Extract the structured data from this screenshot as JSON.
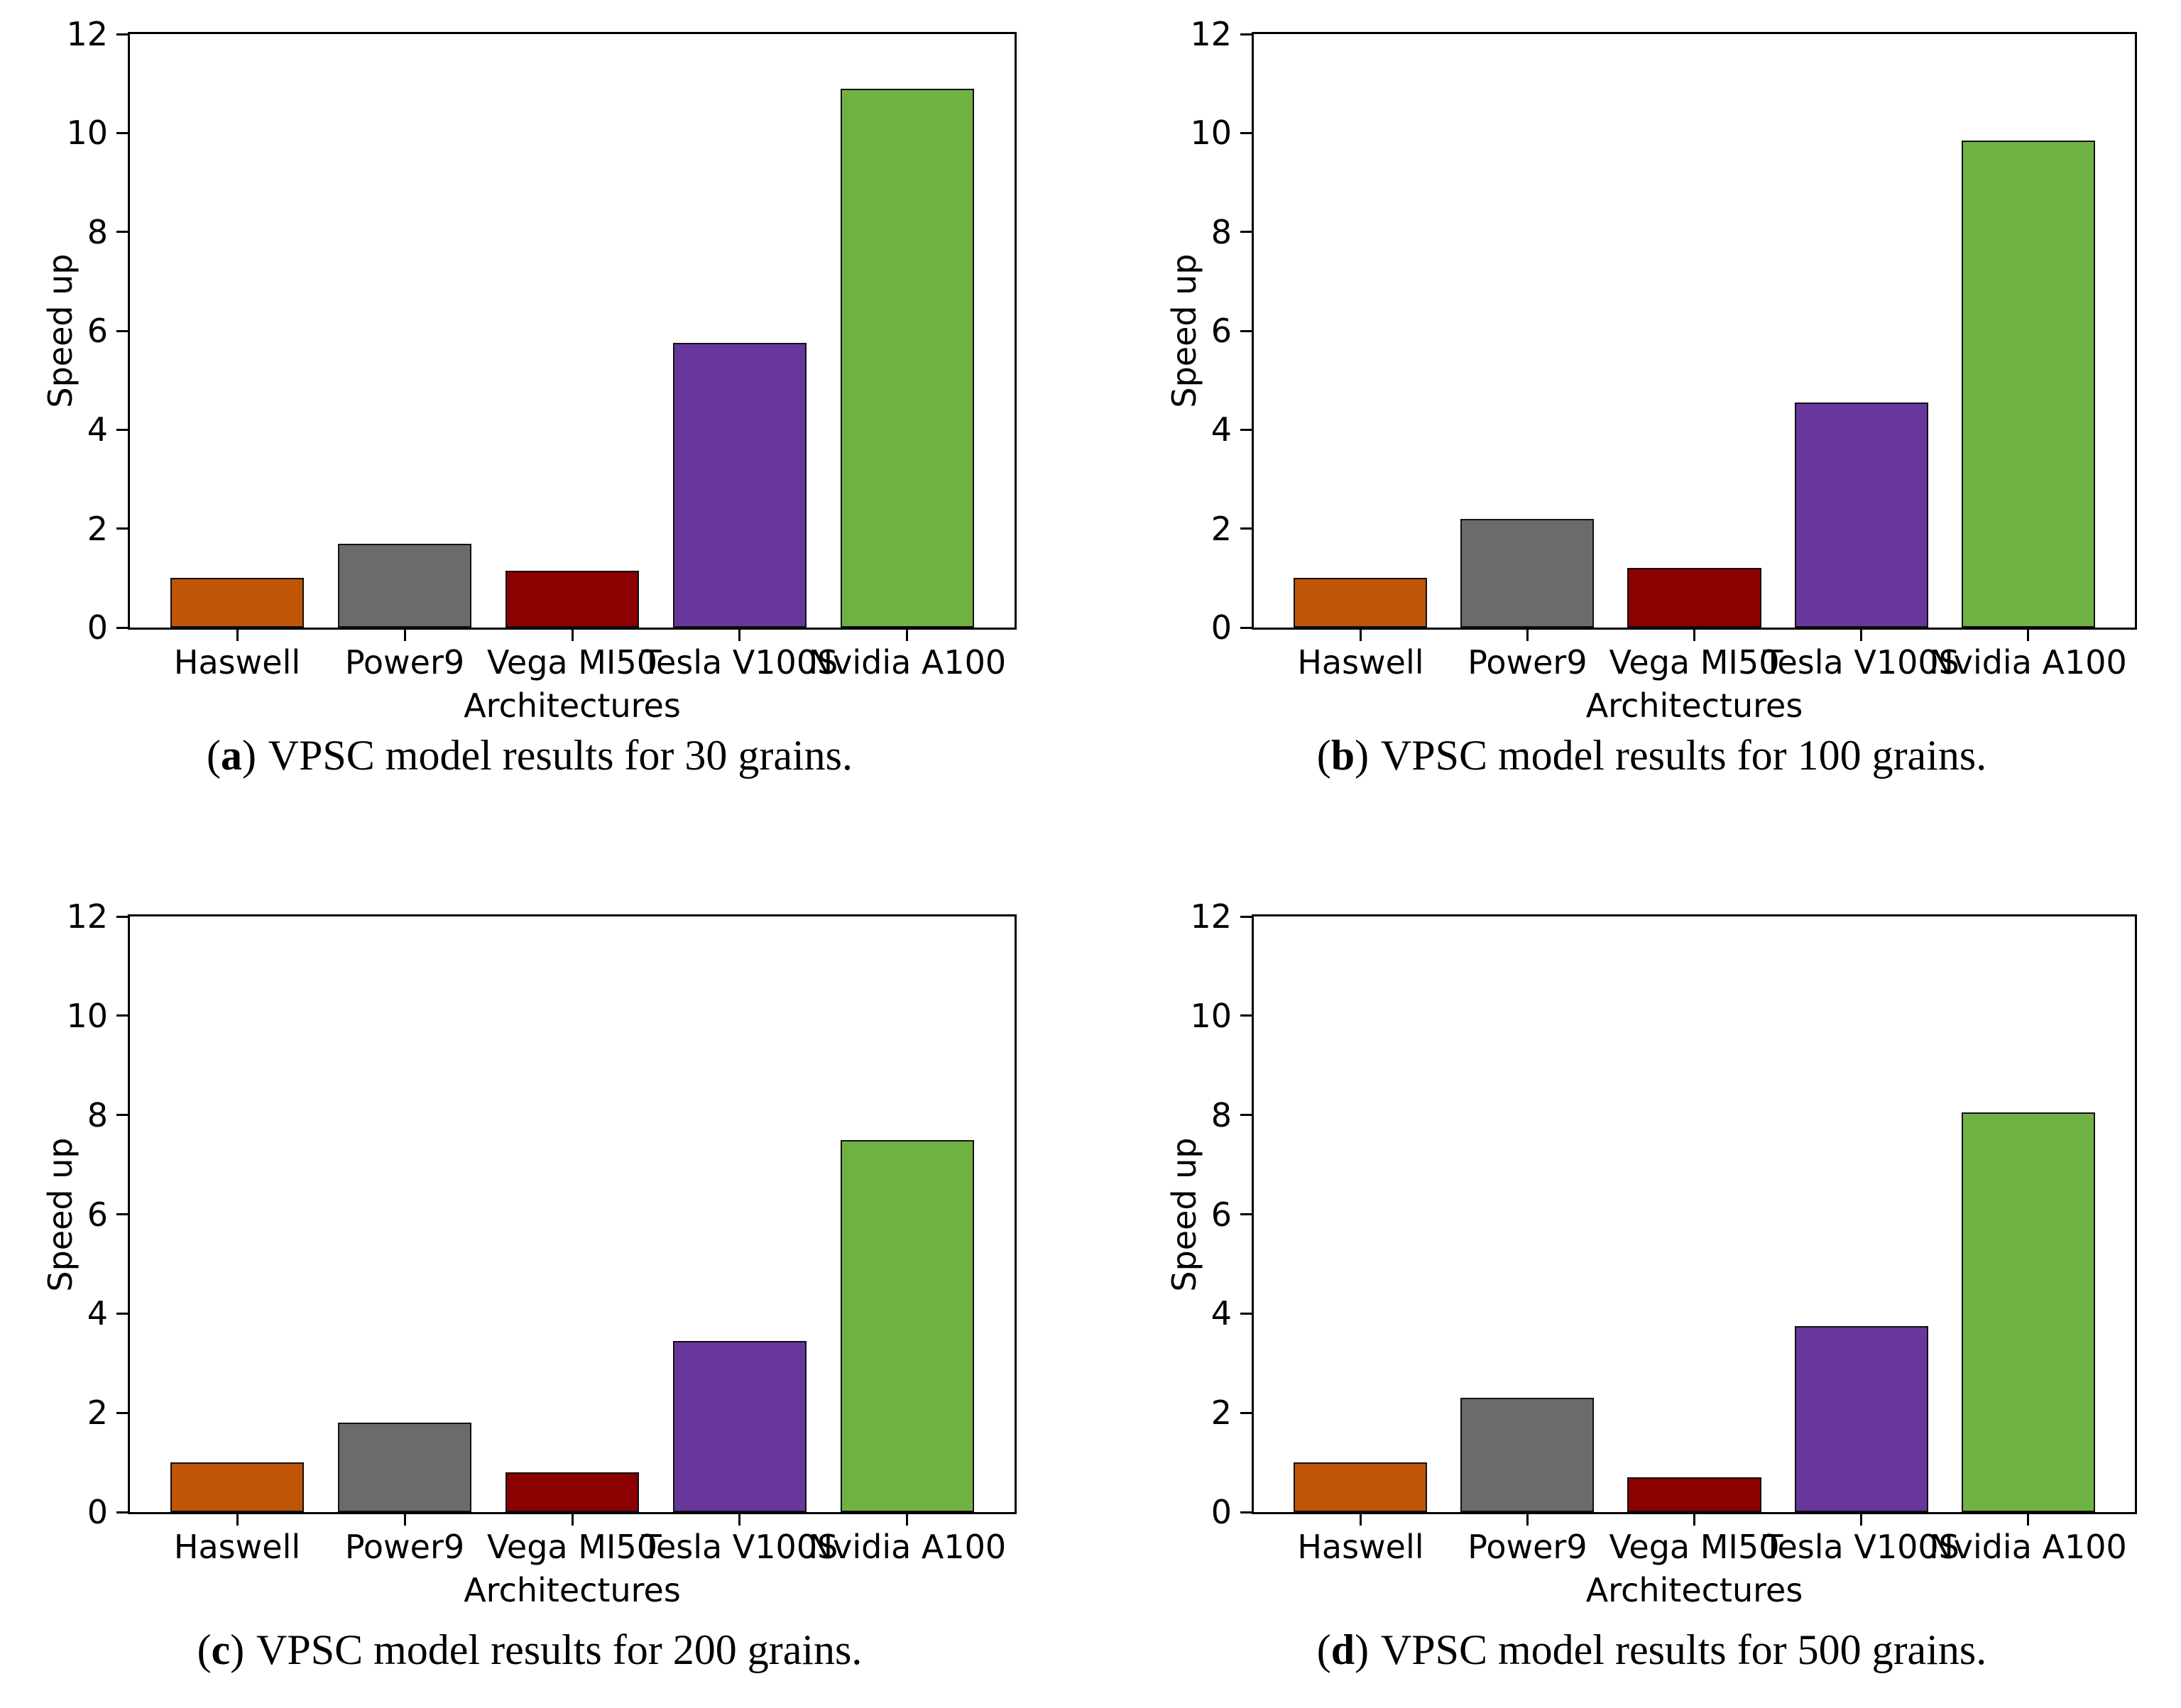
{
  "style": {
    "background": "#ffffff",
    "bar_colors": [
      "#c15506",
      "#6b6b6b",
      "#8b0000",
      "#67379e",
      "#70b144"
    ],
    "bar_edge_color": "#111111",
    "frame_color": "#000000",
    "text_color": "#000000"
  },
  "chart_data": [
    {
      "id": "a",
      "type": "bar",
      "caption_prefix": "(",
      "caption_letter": "a",
      "caption_suffix": ")",
      "caption_text": "VPSC model results for 30 grains.",
      "categories": [
        "Haswell",
        "Power9",
        "Vega MI50",
        "Tesla V100S",
        "Nvidia A100"
      ],
      "values": [
        1.0,
        1.7,
        1.15,
        5.75,
        10.9
      ],
      "xlabel": "Architectures",
      "ylabel": "Speed up",
      "ylim": [
        0,
        12
      ],
      "yticks": [
        0,
        2,
        4,
        6,
        8,
        10,
        12
      ],
      "grid": false,
      "legend": "none"
    },
    {
      "id": "b",
      "type": "bar",
      "caption_prefix": "(",
      "caption_letter": "b",
      "caption_suffix": ")",
      "caption_text": "VPSC model results for 100 grains.",
      "categories": [
        "Haswell",
        "Power9",
        "Vega MI50",
        "Tesla V100S",
        "Nvidia A100"
      ],
      "values": [
        1.0,
        2.2,
        1.2,
        4.55,
        9.85
      ],
      "xlabel": "Architectures",
      "ylabel": "Speed up",
      "ylim": [
        0,
        12
      ],
      "yticks": [
        0,
        2,
        4,
        6,
        8,
        10,
        12
      ],
      "grid": false,
      "legend": "none"
    },
    {
      "id": "c",
      "type": "bar",
      "caption_prefix": "(",
      "caption_letter": "c",
      "caption_suffix": ")",
      "caption_text": "VPSC model results for 200 grains.",
      "categories": [
        "Haswell",
        "Power9",
        "Vega MI50",
        "Tesla V100S",
        "Nvidia A100"
      ],
      "values": [
        1.0,
        1.8,
        0.8,
        3.45,
        7.5
      ],
      "xlabel": "Architectures",
      "ylabel": "Speed up",
      "ylim": [
        0,
        12
      ],
      "yticks": [
        0,
        2,
        4,
        6,
        8,
        10,
        12
      ],
      "grid": false,
      "legend": "none"
    },
    {
      "id": "d",
      "type": "bar",
      "caption_prefix": "(",
      "caption_letter": "d",
      "caption_suffix": ")",
      "caption_text": "VPSC model results for 500 grains.",
      "categories": [
        "Haswell",
        "Power9",
        "Vega MI50",
        "Tesla V100S",
        "Nvidia A100"
      ],
      "values": [
        1.0,
        2.3,
        0.7,
        3.75,
        8.05
      ],
      "xlabel": "Architectures",
      "ylabel": "Speed up",
      "ylim": [
        0,
        12
      ],
      "yticks": [
        0,
        2,
        4,
        6,
        8,
        10,
        12
      ],
      "grid": false,
      "legend": "none"
    }
  ]
}
